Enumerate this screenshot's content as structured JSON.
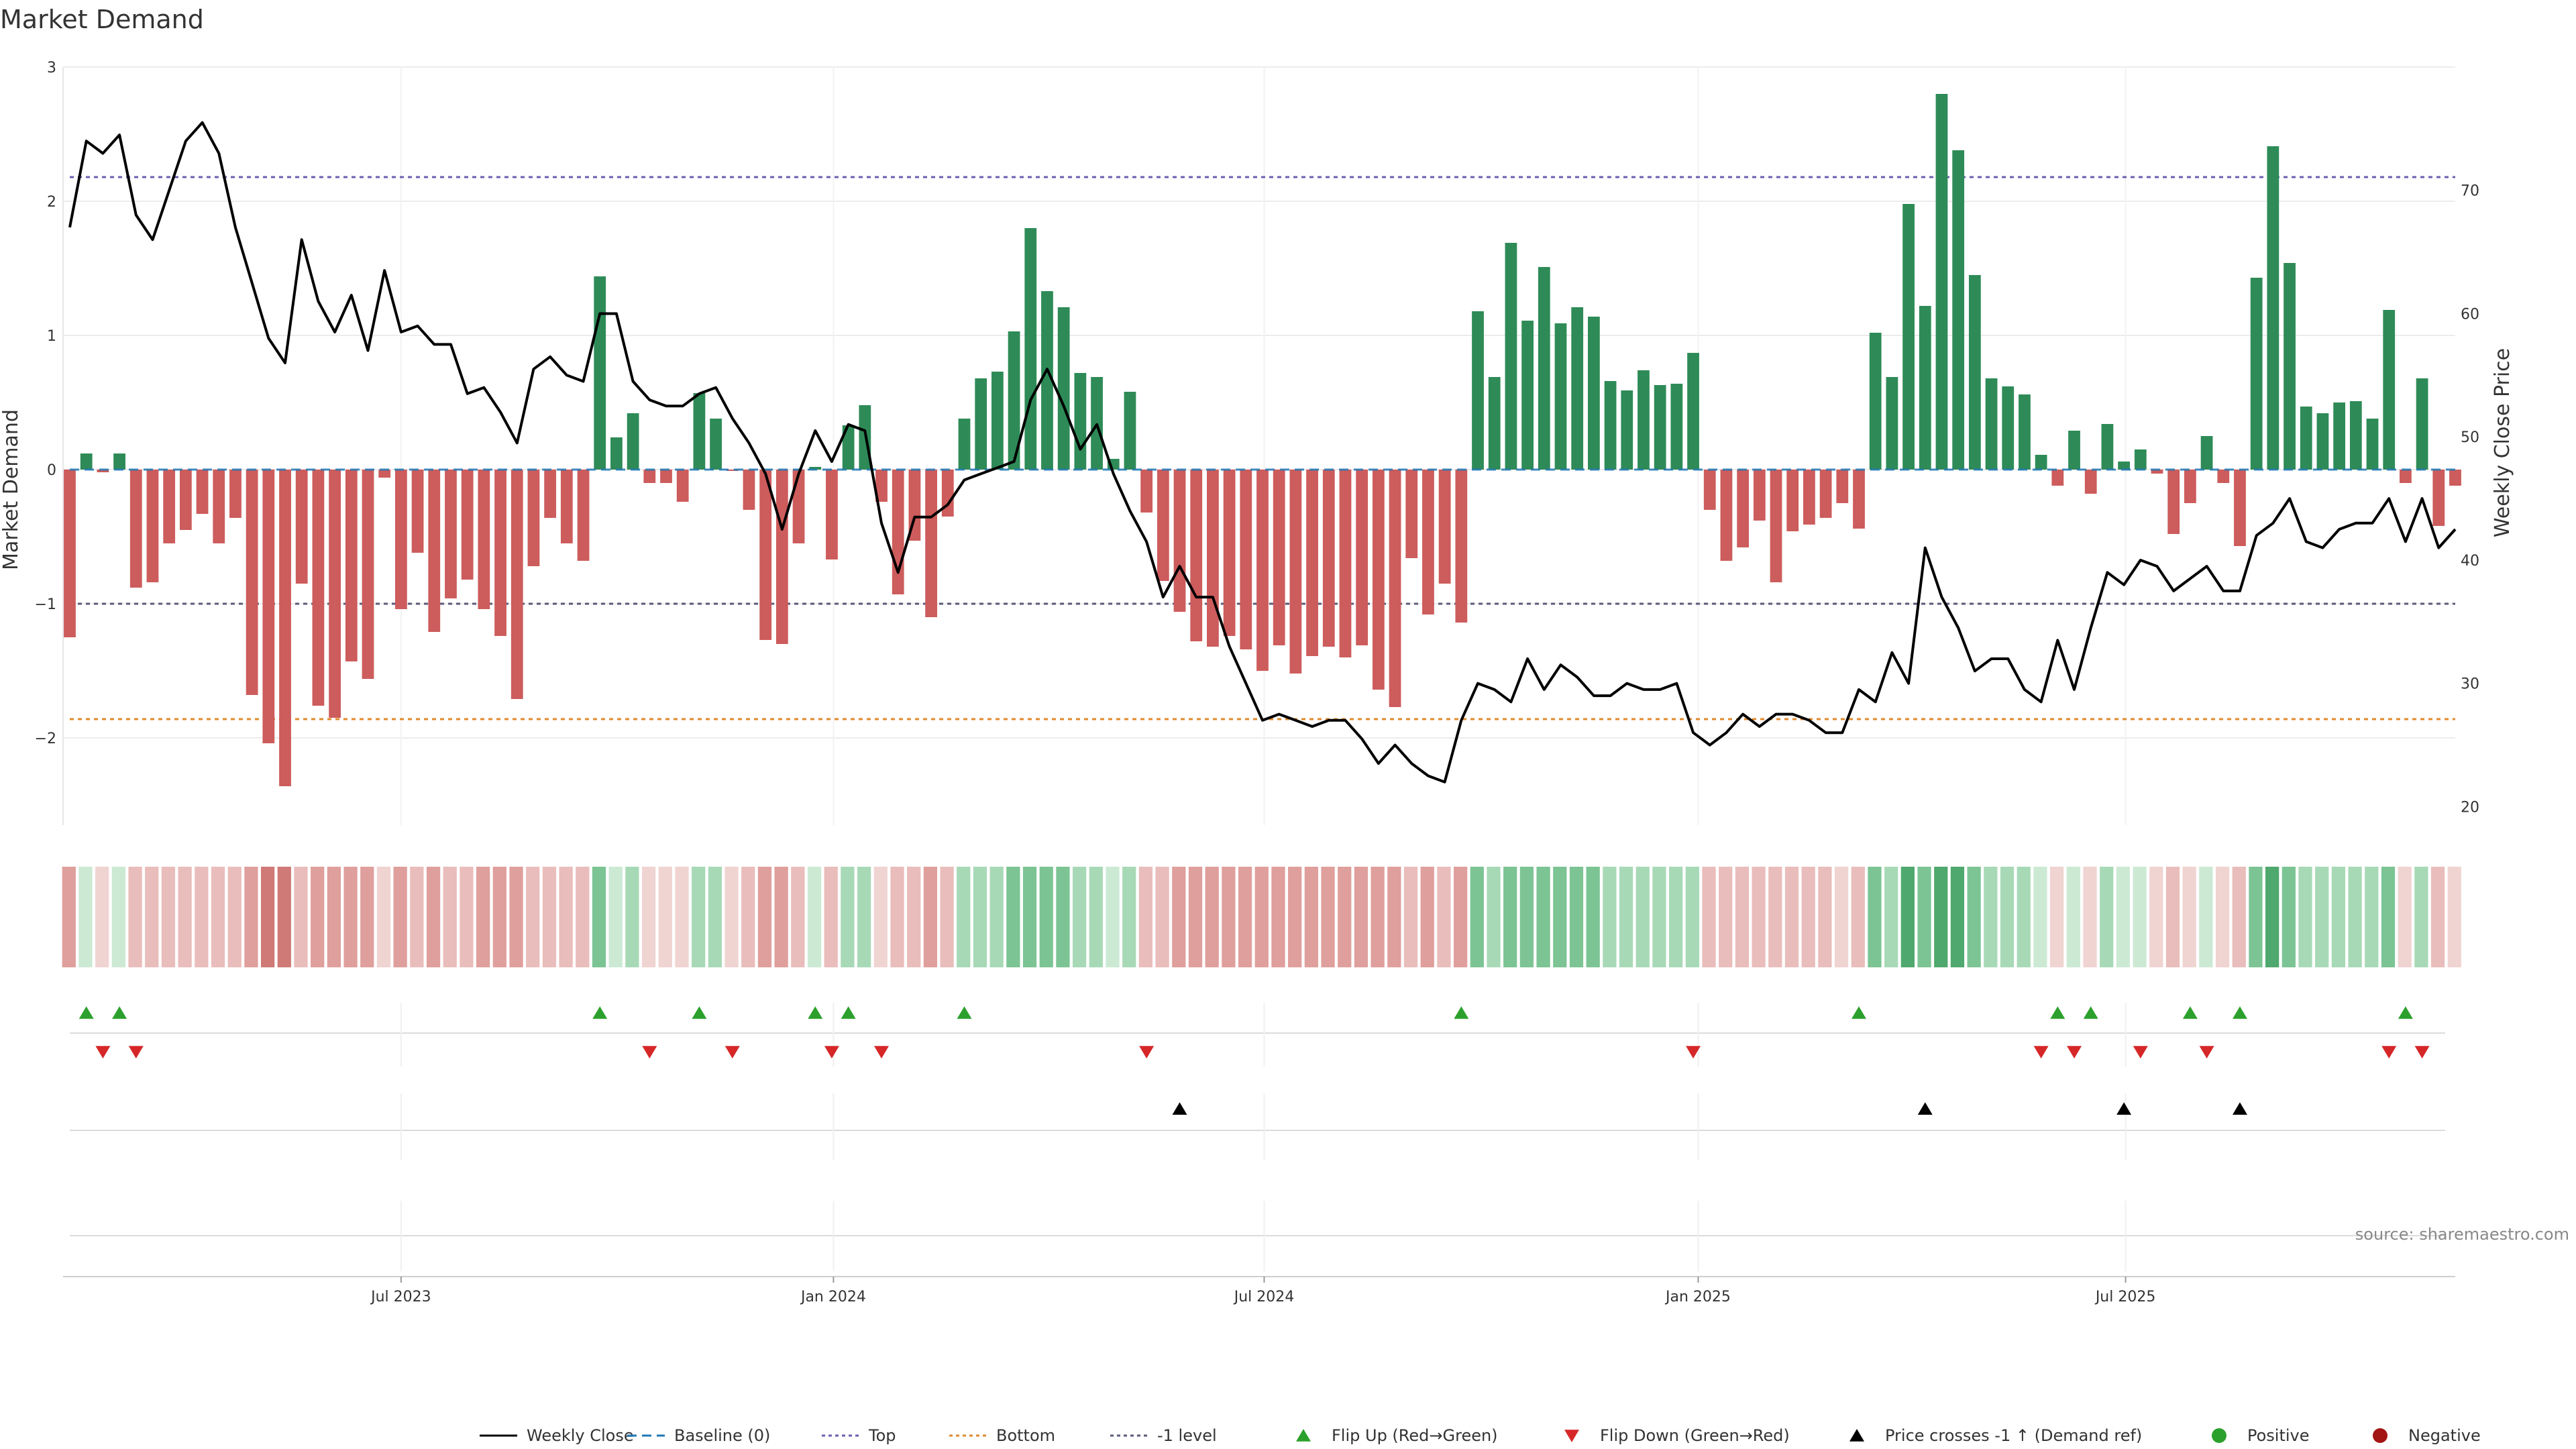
{
  "chart_data": {
    "type": "bar",
    "title": "Market Demand",
    "ylabel_left": "Market Demand",
    "ylabel_right": "Weekly Close Price",
    "ylim_left": [
      -2.65,
      3.0
    ],
    "ylim_right": [
      18.5,
      80.0
    ],
    "yticks_left": [
      3,
      2,
      1,
      0,
      -1,
      -2
    ],
    "yticks_left_labels": [
      "3",
      "2",
      "1",
      "0",
      "−1",
      "−2"
    ],
    "yticks_right": [
      70,
      60,
      50,
      40,
      30,
      20
    ],
    "x_range_weeks": [
      0,
      144
    ],
    "x_ticks": [
      {
        "label": "Jul 2023",
        "week": 20
      },
      {
        "label": "Jan 2024",
        "week": 46.1
      },
      {
        "label": "Jul 2024",
        "week": 72.1
      },
      {
        "label": "Jan 2025",
        "week": 98.3
      },
      {
        "label": "Jul 2025",
        "week": 124.1
      }
    ],
    "reference_lines": {
      "top": 2.18,
      "bottom": -1.86,
      "minus_one": -1.0,
      "baseline": 0
    },
    "colors": {
      "positive_bar": "#2e8b57",
      "negative_bar": "#cd5c5c",
      "close_line": "#000000",
      "top_line": "#6b5fb0",
      "bottom_line": "#e08a2c",
      "minus_one_line": "#5a5a7a",
      "baseline": "#1f77b4",
      "flip_up": "#2ca02c",
      "flip_down": "#d62728",
      "cross_marker": "#000000",
      "legend_positive": "#2ca02c",
      "legend_negative": "#a31515"
    },
    "demand": [
      -1.25,
      0.12,
      -0.02,
      0.12,
      -0.88,
      -0.84,
      -0.55,
      -0.45,
      -0.33,
      -0.55,
      -0.36,
      -1.68,
      -2.04,
      -2.36,
      -0.85,
      -1.76,
      -1.85,
      -1.43,
      -1.56,
      -0.06,
      -1.04,
      -0.62,
      -1.21,
      -0.96,
      -0.82,
      -1.04,
      -1.24,
      -1.71,
      -0.72,
      -0.36,
      -0.55,
      -0.68,
      1.44,
      0.24,
      0.42,
      -0.1,
      -0.1,
      -0.24,
      0.57,
      0.38,
      -0.01,
      -0.3,
      -1.27,
      -1.3,
      -0.55,
      0.02,
      -0.67,
      0.33,
      0.48,
      -0.24,
      -0.93,
      -0.53,
      -1.1,
      -0.35,
      0.38,
      0.68,
      0.73,
      1.03,
      1.8,
      1.33,
      1.21,
      0.72,
      0.69,
      0.08,
      0.58,
      -0.32,
      -0.83,
      -1.06,
      -1.28,
      -1.32,
      -1.24,
      -1.34,
      -1.5,
      -1.31,
      -1.52,
      -1.39,
      -1.32,
      -1.4,
      -1.31,
      -1.64,
      -1.77,
      -0.66,
      -1.08,
      -0.85,
      -1.14,
      1.18,
      0.69,
      1.69,
      1.11,
      1.51,
      1.09,
      1.21,
      1.14,
      0.66,
      0.59,
      0.74,
      0.63,
      0.64,
      0.87,
      -0.3,
      -0.68,
      -0.58,
      -0.38,
      -0.84,
      -0.46,
      -0.41,
      -0.36,
      -0.25,
      -0.44,
      1.02,
      0.69,
      1.98,
      1.22,
      2.8,
      2.38,
      1.45,
      0.68,
      0.62,
      0.56,
      0.11,
      -0.12,
      0.29,
      -0.18,
      0.34,
      0.06,
      0.15,
      -0.03,
      -0.48,
      -0.25,
      0.25,
      -0.1,
      -0.57,
      1.43,
      2.41,
      1.54,
      0.47,
      0.42,
      0.5,
      0.51,
      0.38,
      1.19,
      -0.1,
      0.68,
      -0.42,
      -0.12
    ],
    "close": [
      67,
      74,
      73,
      74.5,
      68,
      66,
      70,
      74,
      75.5,
      73,
      67,
      62.5,
      58,
      56,
      66,
      61,
      58.5,
      61.5,
      57,
      63.5,
      58.5,
      59,
      57.5,
      57.5,
      53.5,
      54,
      52,
      49.5,
      55.5,
      56.5,
      55,
      54.5,
      60,
      60,
      54.5,
      53,
      52.5,
      52.5,
      53.5,
      54,
      51.5,
      49.5,
      47,
      42.5,
      47,
      50.5,
      48,
      51,
      50.5,
      43,
      39,
      43.5,
      43.5,
      44.5,
      46.5,
      47,
      47.5,
      48,
      53,
      55.5,
      52.5,
      49,
      51,
      47,
      44,
      41.5,
      37,
      39.5,
      37,
      37,
      33,
      30,
      27,
      27.5,
      27,
      26.5,
      27,
      27,
      25.5,
      23.5,
      25,
      23.5,
      22.5,
      22,
      27,
      30,
      29.5,
      28.5,
      32,
      29.5,
      31.5,
      30.5,
      29,
      29,
      30,
      29.5,
      29.5,
      30,
      26,
      25,
      26,
      27.5,
      26.5,
      27.5,
      27.5,
      27,
      26,
      26,
      29.5,
      28.5,
      32.5,
      30,
      41,
      37,
      34.5,
      31,
      32,
      32,
      29.5,
      28.5,
      33.5,
      29.5,
      34.5,
      39,
      38,
      40,
      39.5,
      37.5,
      38.5,
      39.5,
      37.5,
      37.5,
      42,
      43,
      45,
      41.5,
      41,
      42.5,
      43,
      43,
      45,
      41.5,
      45,
      41,
      42.5
    ],
    "flip_up_weeks": [
      1,
      3,
      32,
      38,
      45,
      47,
      54,
      84,
      108,
      120,
      122,
      128,
      131,
      141
    ],
    "flip_down_weeks": [
      2,
      4,
      35,
      40,
      46,
      49,
      65,
      98,
      119,
      121,
      125,
      129,
      140,
      142
    ],
    "cross_weeks": [
      67,
      112,
      124,
      131
    ],
    "legend": [
      {
        "label": "Weekly Close",
        "marker": "line-solid"
      },
      {
        "label": "Baseline (0)",
        "marker": "line-dash-blue"
      },
      {
        "label": "Top",
        "marker": "line-dot-purple"
      },
      {
        "label": "Bottom",
        "marker": "line-dot-orange"
      },
      {
        "label": "-1 level",
        "marker": "line-dot-gray"
      },
      {
        "label": "Flip Up (Red→Green)",
        "marker": "triangle-up-green"
      },
      {
        "label": "Flip Down (Green→Red)",
        "marker": "triangle-down-red"
      },
      {
        "label": "Price crosses -1 ↑ (Demand ref)",
        "marker": "triangle-up-black"
      },
      {
        "label": "Positive",
        "marker": "circle-green"
      },
      {
        "label": "Negative",
        "marker": "circle-red"
      }
    ],
    "legend_placement": "bottom-center",
    "source": "source: sharemaestro.com"
  }
}
